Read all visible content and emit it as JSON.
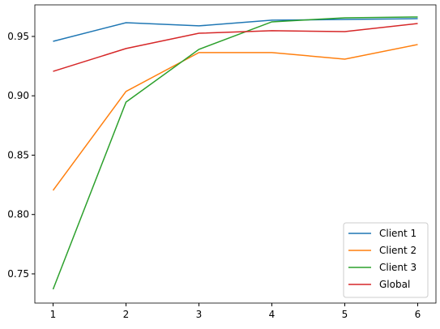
{
  "chart_data": {
    "type": "line",
    "x": [
      1,
      2,
      3,
      4,
      5,
      6
    ],
    "series": [
      {
        "name": "Client 1",
        "color": "#1f77b4",
        "values": [
          0.9459,
          0.9616,
          0.9589,
          0.9637,
          0.9643,
          0.965
        ]
      },
      {
        "name": "Client 2",
        "color": "#ff7f0e",
        "values": [
          0.8203,
          0.9037,
          0.9364,
          0.9364,
          0.9309,
          0.9432
        ]
      },
      {
        "name": "Client 3",
        "color": "#2ca02c",
        "values": [
          0.737,
          0.8947,
          0.9391,
          0.9623,
          0.9657,
          0.9664
        ]
      },
      {
        "name": "Global",
        "color": "#d62728",
        "values": [
          0.9206,
          0.9398,
          0.9527,
          0.9548,
          0.9541,
          0.9609
        ]
      }
    ],
    "xlim": [
      0.75,
      6.25
    ],
    "xticks": [
      1,
      2,
      3,
      4,
      5,
      6
    ],
    "ylim": [
      0.7254,
      0.9766
    ],
    "yticks": [
      0.75,
      {
        "value": 0.8,
        "label": "0.80"
      },
      0.85,
      {
        "value": 0.9,
        "label": "0.90"
      },
      0.95
    ],
    "legend": "lower right"
  }
}
